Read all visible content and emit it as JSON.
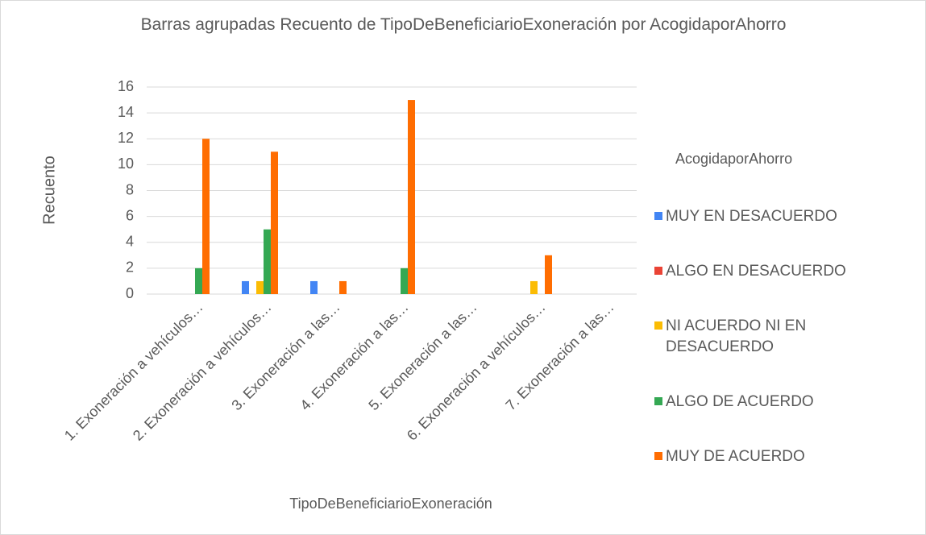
{
  "chart_data": {
    "type": "bar",
    "title": "Barras agrupadas Recuento de TipoDeBeneficiarioExoneración por AcogidaporAhorro",
    "x_label": "TipoDeBeneficiarioExoneración",
    "y_label": "Recuento",
    "legend_title": "AcogidaporAhorro",
    "legend": "right",
    "grid": true,
    "categories": [
      "1. Exoneración a vehículos…",
      "2. Exoneración a vehículos…",
      "3. Exoneración a las…",
      "4. Exoneración a las…",
      "5. Exoneración a las…",
      "6. Exoneración a vehículos…",
      "7. Exoneración a las…"
    ],
    "series": [
      {
        "name": "MUY EN DESACUERDO",
        "color": "#4285f4",
        "values": [
          0,
          1,
          1,
          0,
          0,
          0,
          0
        ]
      },
      {
        "name": "ALGO EN DESACUERDO",
        "color": "#ea4335",
        "values": [
          0,
          0,
          0,
          0,
          0,
          0,
          0
        ]
      },
      {
        "name": "NI ACUERDO NI EN DESACUERDO",
        "color": "#fbbc04",
        "values": [
          0,
          1,
          0,
          0,
          0,
          1,
          0
        ]
      },
      {
        "name": "ALGO DE ACUERDO",
        "color": "#34a853",
        "values": [
          2,
          5,
          0,
          2,
          0,
          0,
          0
        ]
      },
      {
        "name": "MUY DE ACUERDO",
        "color": "#ff6d01",
        "values": [
          12,
          11,
          1,
          15,
          0,
          3,
          0
        ]
      }
    ],
    "ylim": [
      0,
      16
    ],
    "yticks": [
      0,
      2,
      4,
      6,
      8,
      10,
      12,
      14,
      16
    ]
  }
}
